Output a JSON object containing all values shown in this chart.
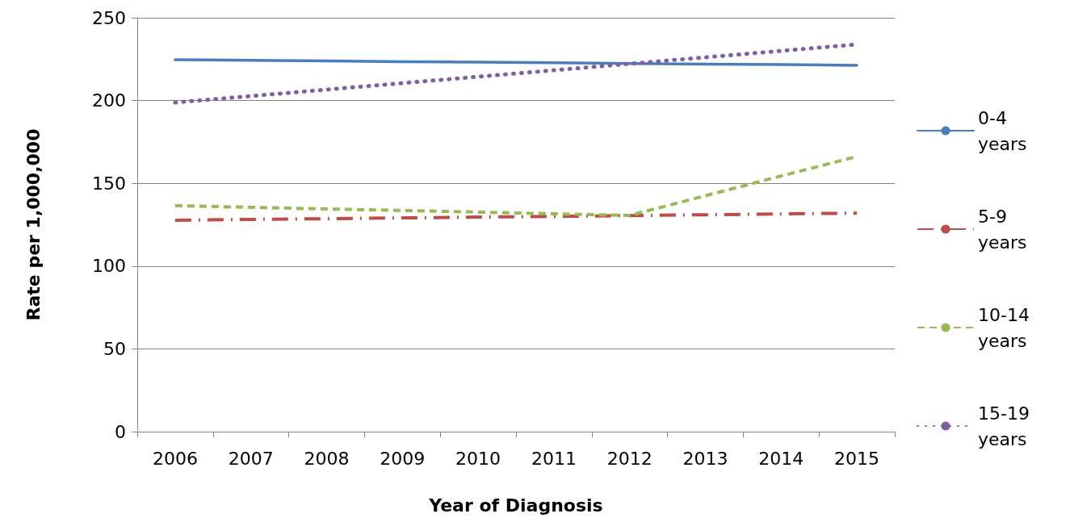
{
  "chart_data": {
    "type": "line",
    "xlabel": "Year of Diagnosis",
    "ylabel": "Rate per 1,000,000",
    "categories": [
      "2006",
      "2007",
      "2008",
      "2009",
      "2010",
      "2011",
      "2012",
      "2013",
      "2014",
      "2015"
    ],
    "series": [
      {
        "name": "0-4 years",
        "color": "#4a7ebb",
        "line_style": "solid",
        "values": [
          224.7,
          224.3,
          223.9,
          223.5,
          223.2,
          222.8,
          222.4,
          222.0,
          221.7,
          221.3
        ]
      },
      {
        "name": "5-9 years",
        "color": "#be4b48",
        "line_style": "dashdot",
        "values": [
          127.7,
          128.2,
          128.6,
          129.1,
          129.6,
          130.0,
          130.5,
          131.0,
          131.5,
          132.0
        ]
      },
      {
        "name": "10-14 years",
        "color": "#98b954",
        "line_style": "dashed",
        "values": [
          136.5,
          135.5,
          134.5,
          133.6,
          132.6,
          131.6,
          130.6,
          142.5,
          154.4,
          166.2
        ]
      },
      {
        "name": "15-19 years",
        "color": "#7d60a0",
        "line_style": "dotted",
        "values": [
          198.8,
          202.7,
          206.6,
          210.5,
          214.4,
          218.3,
          222.2,
          226.1,
          230.0,
          233.9
        ]
      }
    ],
    "ylim": [
      0,
      250
    ],
    "yticks": [
      0,
      50,
      100,
      150,
      200,
      250
    ],
    "grid": "y",
    "legend": "right",
    "marker": "none"
  }
}
